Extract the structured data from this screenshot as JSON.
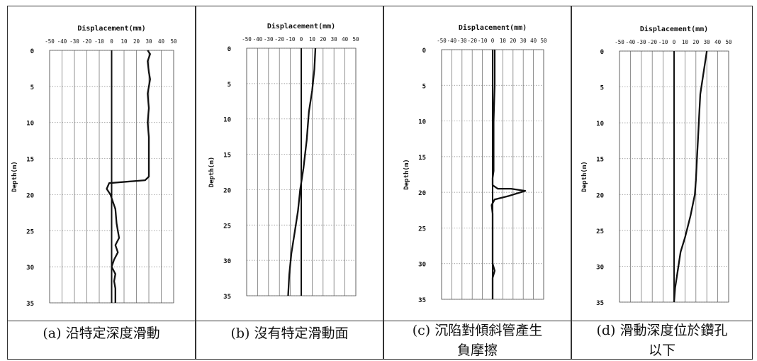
{
  "panels": [
    {
      "caption_lines": [
        "(a) 沿特定深度滑動"
      ],
      "chart_data": {
        "type": "line",
        "title": "Displacement(mm)",
        "xlabel": "Displacement(mm)",
        "ylabel": "Depth(m)",
        "xlim": [
          -50,
          50
        ],
        "ylim": [
          0,
          35
        ],
        "x_ticks": [
          "-50",
          "-40",
          "-30",
          "-20",
          "-10",
          "0",
          "10",
          "20",
          "30",
          "40",
          "50"
        ],
        "y_ticks": [
          "0",
          "5",
          "10",
          "15",
          "20",
          "25",
          "30",
          "35"
        ],
        "grid": true,
        "series": [
          {
            "role": "profile",
            "points": [
              [
                29,
                0
              ],
              [
                31,
                0.5
              ],
              [
                29,
                1.5
              ],
              [
                30,
                3
              ],
              [
                31,
                4
              ],
              [
                29,
                6
              ],
              [
                30,
                8
              ],
              [
                29,
                10
              ],
              [
                30,
                12
              ],
              [
                30,
                15
              ],
              [
                30,
                17.5
              ],
              [
                27,
                18
              ],
              [
                -2,
                18.4
              ],
              [
                -4,
                19.2
              ],
              [
                -1,
                20
              ],
              [
                1,
                21
              ],
              [
                3,
                22
              ],
              [
                4,
                24
              ],
              [
                6,
                26
              ],
              [
                3,
                27
              ],
              [
                5,
                28
              ],
              [
                2,
                29
              ],
              [
                0,
                30
              ],
              [
                3,
                31
              ],
              [
                2,
                32
              ],
              [
                3,
                33
              ],
              [
                3,
                35
              ]
            ]
          },
          {
            "role": "reference",
            "points": [
              [
                0,
                0
              ],
              [
                0,
                35
              ]
            ]
          }
        ]
      }
    },
    {
      "caption_lines": [
        "(b) 沒有特定滑動面"
      ],
      "chart_data": {
        "type": "line",
        "title": "Displacement(mm)",
        "xlabel": "Displacement(mm)",
        "ylabel": "Depth(m)",
        "xlim": [
          -50,
          50
        ],
        "ylim": [
          0,
          35
        ],
        "x_ticks": [
          "-50",
          "-40",
          "-30",
          "-20",
          "-10",
          "0",
          "10",
          "20",
          "30",
          "40",
          "50"
        ],
        "y_ticks": [
          "0",
          "5",
          "10",
          "15",
          "20",
          "25",
          "30",
          "35"
        ],
        "grid": true,
        "series": [
          {
            "role": "profile",
            "points": [
              [
                13,
                0
              ],
              [
                12,
                3
              ],
              [
                10,
                6
              ],
              [
                7,
                9
              ],
              [
                5,
                13
              ],
              [
                2,
                17
              ],
              [
                -1,
                20
              ],
              [
                -3,
                23
              ],
              [
                -6,
                26
              ],
              [
                -9,
                29
              ],
              [
                -11,
                32
              ],
              [
                -12,
                35
              ]
            ]
          },
          {
            "role": "reference",
            "points": [
              [
                0,
                0
              ],
              [
                0,
                35
              ]
            ]
          }
        ]
      }
    },
    {
      "caption_lines": [
        "(c) 沉陷對傾斜管產生",
        "負摩擦"
      ],
      "chart_data": {
        "type": "line",
        "title": "Displacement(mm)",
        "xlabel": "Displacement(mm)",
        "ylabel": "Depth(m)",
        "xlim": [
          -50,
          50
        ],
        "ylim": [
          0,
          35
        ],
        "x_ticks": [
          "-50",
          "-40",
          "-30",
          "-20",
          "-10",
          "0",
          "10",
          "20",
          "30",
          "40",
          "50"
        ],
        "y_ticks": [
          "0",
          "5",
          "10",
          "15",
          "20",
          "25",
          "30",
          "35"
        ],
        "grid": true,
        "series": [
          {
            "role": "profile",
            "points": [
              [
                2,
                0
              ],
              [
                2,
                5
              ],
              [
                1,
                10
              ],
              [
                1,
                15
              ],
              [
                1,
                17
              ],
              [
                0,
                18
              ],
              [
                0,
                19
              ],
              [
                5,
                19.5
              ],
              [
                18,
                19.5
              ],
              [
                32,
                19.8
              ],
              [
                16,
                20.5
              ],
              [
                2,
                21
              ],
              [
                -1,
                21.8
              ],
              [
                0,
                23
              ],
              [
                0,
                25
              ],
              [
                0,
                28
              ],
              [
                0,
                30
              ],
              [
                2,
                31
              ],
              [
                0,
                32
              ],
              [
                0,
                35
              ]
            ]
          },
          {
            "role": "reference",
            "points": [
              [
                0,
                0
              ],
              [
                0,
                35
              ]
            ]
          }
        ]
      }
    },
    {
      "caption_lines": [
        "(d) 滑動深度位於鑽孔",
        "以下"
      ],
      "chart_data": {
        "type": "line",
        "title": "Displacement(mm)",
        "xlabel": "Displacement(mm)",
        "ylabel": "Depth(m)",
        "xlim": [
          -50,
          50
        ],
        "ylim": [
          0,
          35
        ],
        "x_ticks": [
          "-50",
          "-40",
          "-30",
          "-20",
          "-10",
          "0",
          "10",
          "20",
          "30",
          "40",
          "50"
        ],
        "y_ticks": [
          "0",
          "5",
          "10",
          "15",
          "20",
          "25",
          "30",
          "35"
        ],
        "grid": true,
        "series": [
          {
            "role": "profile",
            "points": [
              [
                30,
                0
              ],
              [
                27,
                3
              ],
              [
                24,
                6
              ],
              [
                23,
                9
              ],
              [
                22,
                12
              ],
              [
                21,
                15
              ],
              [
                20,
                18
              ],
              [
                19,
                20
              ],
              [
                15,
                23
              ],
              [
                10,
                26
              ],
              [
                6,
                28
              ],
              [
                3,
                31
              ],
              [
                1,
                33
              ],
              [
                0,
                35
              ]
            ]
          },
          {
            "role": "reference",
            "points": [
              [
                0,
                0
              ],
              [
                0,
                35
              ]
            ]
          }
        ]
      }
    }
  ]
}
